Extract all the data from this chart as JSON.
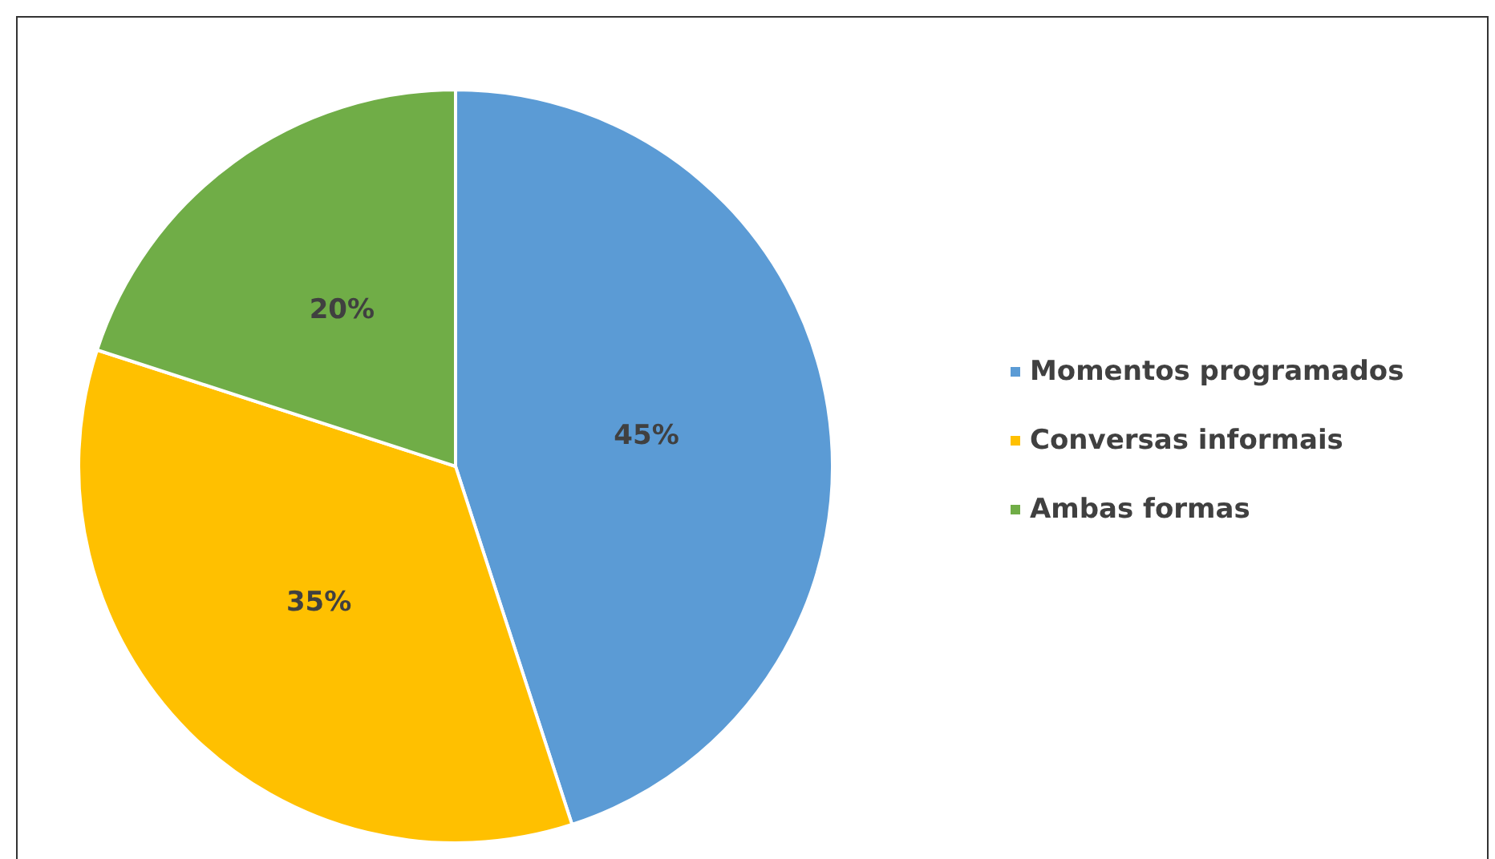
{
  "chart_data": {
    "type": "pie",
    "categories": [
      "Momentos programados",
      "Conversas informais",
      "Ambas formas"
    ],
    "values": [
      45,
      35,
      20
    ],
    "value_labels": [
      "45%",
      "35%",
      "20%"
    ],
    "colors": [
      "#5b9bd5",
      "#ffc000",
      "#70ad47"
    ],
    "legend": "right"
  }
}
